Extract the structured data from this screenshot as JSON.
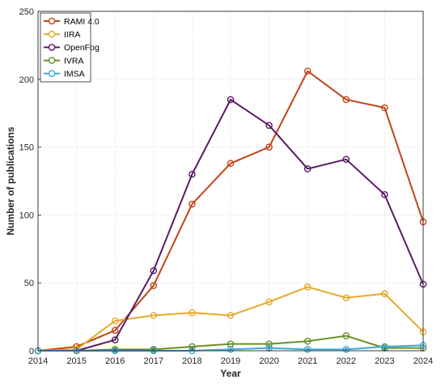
{
  "chart_data": {
    "type": "line",
    "title": "",
    "xlabel": "Year",
    "ylabel": "Number of publications",
    "x": [
      2014,
      2015,
      2016,
      2017,
      2018,
      2019,
      2020,
      2021,
      2022,
      2023,
      2024
    ],
    "xlim": [
      2014,
      2024
    ],
    "ylim": [
      0,
      250
    ],
    "yticks": [
      0,
      50,
      100,
      150,
      200,
      250
    ],
    "grid": true,
    "legend_position": "top-left",
    "series": [
      {
        "name": "RAMI 4.0",
        "color": "#c0451a",
        "values": [
          0,
          3,
          15,
          48,
          108,
          138,
          150,
          206,
          185,
          179,
          95
        ]
      },
      {
        "name": "IIRA",
        "color": "#e6a92c",
        "values": [
          0,
          1,
          22,
          26,
          28,
          26,
          36,
          47,
          39,
          42,
          14
        ]
      },
      {
        "name": "OpenFog",
        "color": "#5a1a66",
        "values": [
          0,
          0,
          8,
          59,
          130,
          185,
          166,
          134,
          141,
          115,
          49
        ]
      },
      {
        "name": "IVRA",
        "color": "#6a8f24",
        "values": [
          0,
          0,
          1,
          1,
          3,
          5,
          5,
          7,
          11,
          2,
          2
        ]
      },
      {
        "name": "IMSA",
        "color": "#3aabd6",
        "values": [
          0,
          0,
          0,
          0,
          0,
          1,
          2,
          1,
          1,
          3,
          4
        ]
      }
    ]
  }
}
